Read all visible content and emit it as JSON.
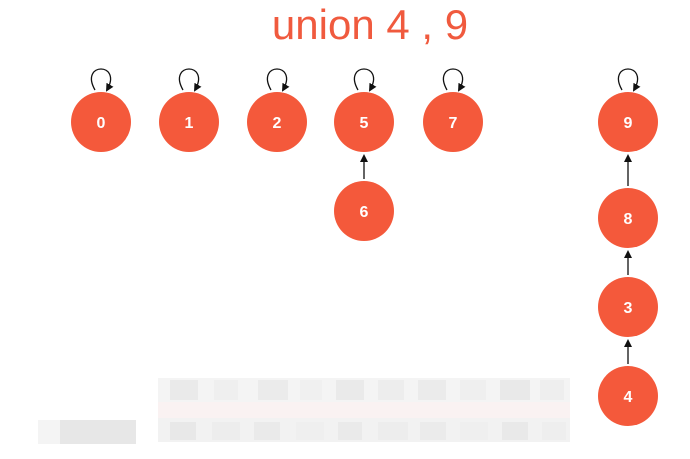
{
  "title": "union 4 , 9",
  "colors": {
    "node_fill": "#f4593b",
    "title": "#f05a3e",
    "edge": "#111111"
  },
  "nodes": [
    {
      "id": "n0",
      "label": "0",
      "self_loop": true
    },
    {
      "id": "n1",
      "label": "1",
      "self_loop": true
    },
    {
      "id": "n2",
      "label": "2",
      "self_loop": true
    },
    {
      "id": "n5",
      "label": "5",
      "self_loop": true
    },
    {
      "id": "n7",
      "label": "7",
      "self_loop": true
    },
    {
      "id": "n9",
      "label": "9",
      "self_loop": true
    },
    {
      "id": "n6",
      "label": "6",
      "self_loop": false
    },
    {
      "id": "n8",
      "label": "8",
      "self_loop": false
    },
    {
      "id": "n3",
      "label": "3",
      "self_loop": false
    },
    {
      "id": "n4",
      "label": "4",
      "self_loop": false
    }
  ],
  "edges": [
    {
      "from": "n6",
      "to": "n5"
    },
    {
      "from": "n8",
      "to": "n9"
    },
    {
      "from": "n3",
      "to": "n8"
    },
    {
      "from": "n4",
      "to": "n3"
    }
  ]
}
